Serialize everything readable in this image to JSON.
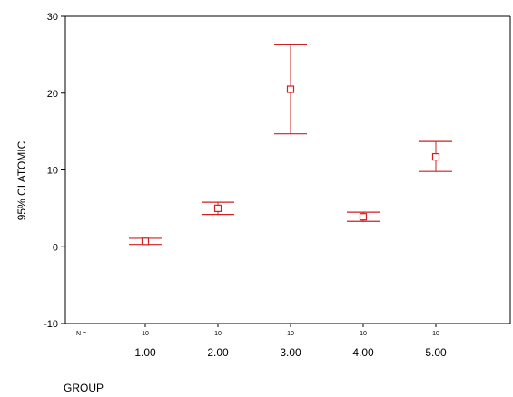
{
  "chart_data": {
    "type": "errorbar",
    "xlabel": "GROUP",
    "ylabel": "95% CI ATOMIC",
    "ylim": [
      -10,
      30
    ],
    "yticks": [
      -10,
      0,
      10,
      20,
      30
    ],
    "n_prefix": "N =",
    "categories": [
      "1.00",
      "2.00",
      "3.00",
      "4.00",
      "5.00"
    ],
    "n": [
      "10",
      "10",
      "10",
      "10",
      "10"
    ],
    "means": [
      0.7,
      5.0,
      20.5,
      3.9,
      11.7
    ],
    "lower": [
      0.3,
      4.2,
      14.7,
      3.3,
      9.8
    ],
    "upper": [
      1.1,
      5.8,
      26.3,
      4.5,
      13.7
    ],
    "grid": false,
    "color": "#d21f1f"
  }
}
